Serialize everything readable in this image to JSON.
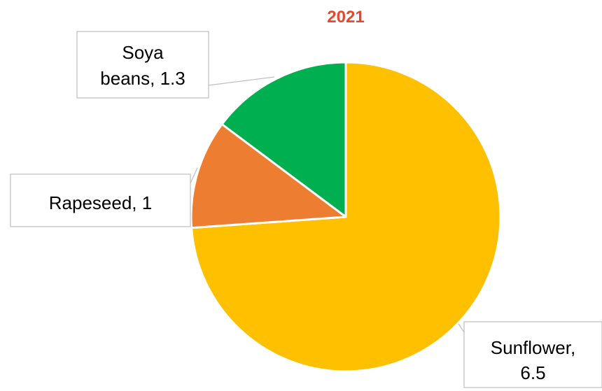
{
  "chart_data": {
    "type": "pie",
    "title": "2021",
    "title_color": "#E8472A",
    "start_angle_deg": 0,
    "direction": "clockwise",
    "slices": [
      {
        "label": "Sunflower",
        "value": 6.5,
        "color": "#FFC000",
        "label_text": [
          "Sunflower,",
          "6.5"
        ]
      },
      {
        "label": "Rapeseed",
        "value": 1,
        "color": "#ED7D31",
        "label_text": [
          "Rapeseed, 1"
        ]
      },
      {
        "label": "Soya beans",
        "value": 1.3,
        "color": "#00B050",
        "label_text": [
          "Soya",
          "beans, 1.3"
        ]
      }
    ],
    "legend": "none"
  }
}
